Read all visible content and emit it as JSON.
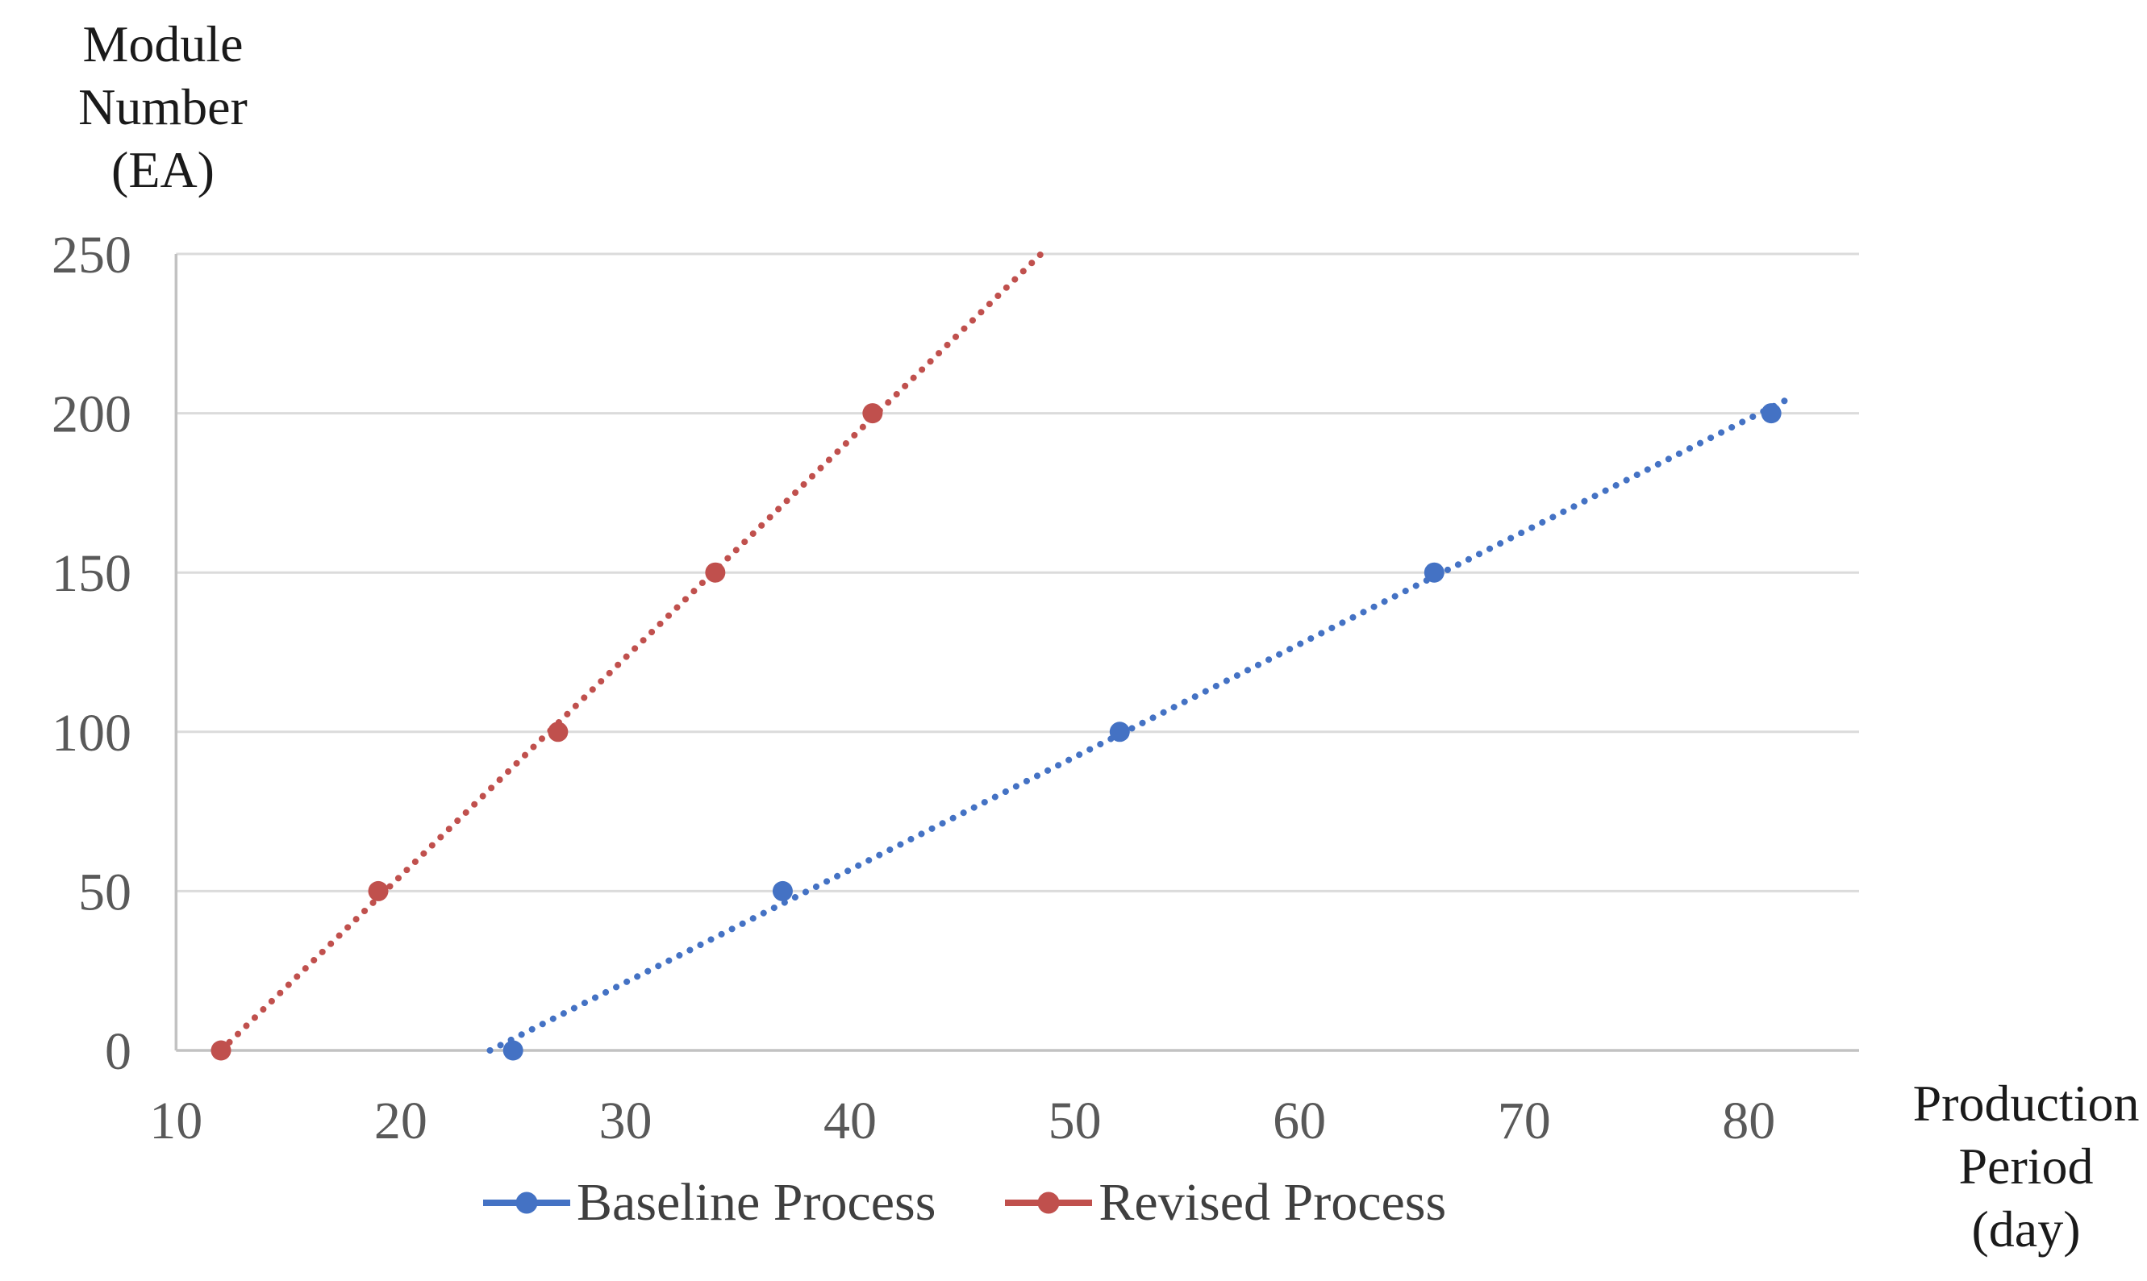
{
  "chart_data": {
    "type": "scatter",
    "title": "",
    "y_axis_title": "Module\nNumber\n(EA)",
    "x_axis_title": "Production\nPeriod\n(day)",
    "x_ticks": [
      10,
      20,
      30,
      40,
      50,
      60,
      70,
      80
    ],
    "y_ticks": [
      0,
      50,
      100,
      150,
      200,
      250
    ],
    "x_range_days": [
      10,
      84.9
    ],
    "y_range": [
      0,
      250
    ],
    "grid": "horizontal-only",
    "legend_position": "bottom-center",
    "colors": {
      "grid": "#DBDBDB",
      "axis": "#C2C2C2",
      "tick_label": "#595959",
      "axis_title": "#1A1A1A",
      "legend_text": "#3F3F3F"
    },
    "series": [
      {
        "name": "Baseline Process",
        "color": "#4472C4",
        "marker": "circle",
        "line_style": "dotted-trendline",
        "points": [
          [
            25,
            0
          ],
          [
            37,
            50
          ],
          [
            52,
            100
          ],
          [
            66,
            150
          ],
          [
            81,
            200
          ]
        ],
        "trendline": {
          "x1": 23.97,
          "y1": 0,
          "x2": 81.9,
          "y2": 205
        }
      },
      {
        "name": "Revised Process",
        "color": "#C0504D",
        "marker": "circle",
        "line_style": "dotted-trendline",
        "points": [
          [
            12,
            0
          ],
          [
            19,
            50
          ],
          [
            27,
            100
          ],
          [
            34,
            150
          ],
          [
            41,
            200
          ]
        ],
        "trendline": {
          "x1": 12,
          "y1": 0,
          "x2": 48.5,
          "y2": 250
        }
      }
    ]
  }
}
